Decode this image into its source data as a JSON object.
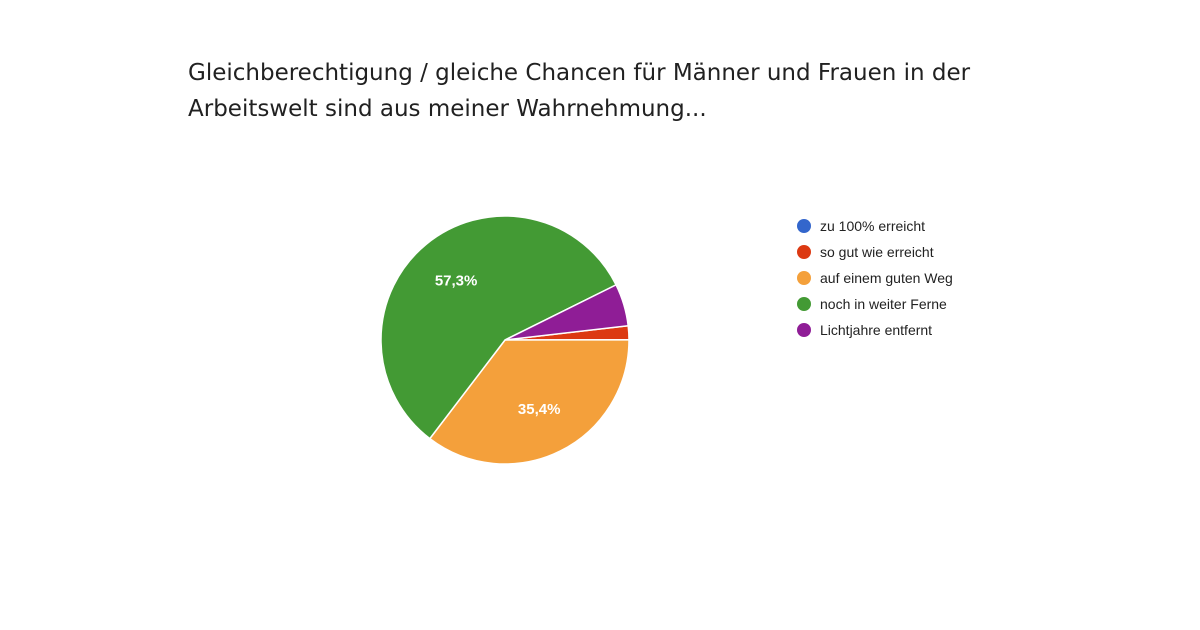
{
  "title_lines": [
    "Gleichberechtigung / gleiche Chancen für Männer und Frauen in der",
    "Arbeitswelt sind aus meiner Wahrnehmung..."
  ],
  "chart_data": {
    "type": "pie",
    "title": "Gleichberechtigung / gleiche Chancen für Männer und Frauen in der Arbeitswelt sind aus meiner Wahrnehmung...",
    "legend_position": "right",
    "slices": [
      {
        "name": "zu 100% erreicht",
        "value": 0,
        "color": "#3366cc",
        "label": ""
      },
      {
        "name": "so gut wie erreicht",
        "value": 1.8,
        "color": "#dc3912",
        "label": ""
      },
      {
        "name": "auf einem guten Weg",
        "value": 35.4,
        "color": "#f4a03b",
        "label": "35,4%"
      },
      {
        "name": "noch in weiter Ferne",
        "value": 57.3,
        "color": "#439a34",
        "label": "57,3%"
      },
      {
        "name": "Lichtjahre entfernt",
        "value": 5.5,
        "color": "#8f1d96",
        "label": ""
      }
    ]
  }
}
